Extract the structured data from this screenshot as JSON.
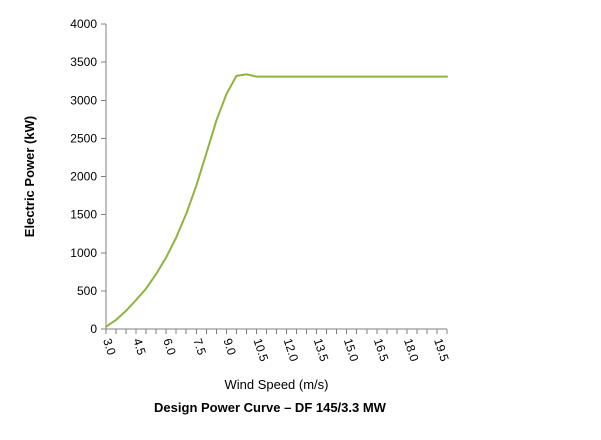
{
  "chart_data": {
    "type": "line",
    "title": "Design Power Curve – DF 145/3.3 MW",
    "xlabel": "Wind Speed (m/s)",
    "ylabel": "Electric Power (kW)",
    "ylim": [
      0,
      4000
    ],
    "yticks": [
      "0",
      "500",
      "1000",
      "1500",
      "2000",
      "2500",
      "3000",
      "3500",
      "4000"
    ],
    "xticks": [
      "3.0",
      "4.5",
      "6.0",
      "7.5",
      "9.0",
      "10.5",
      "12.0",
      "13.5",
      "15.0",
      "16.5",
      "18.0",
      "19.5"
    ],
    "grid": false,
    "x": [
      3.0,
      3.5,
      4.0,
      4.5,
      5.0,
      5.5,
      6.0,
      6.5,
      7.0,
      7.5,
      8.0,
      8.5,
      9.0,
      9.5,
      10.0,
      10.5,
      11.0,
      11.5,
      12.0,
      12.5,
      13.0,
      13.5,
      14.0,
      14.5,
      15.0,
      15.5,
      16.0,
      16.5,
      17.0,
      17.5,
      18.0,
      18.5,
      19.0,
      19.5,
      20.0
    ],
    "series": [
      {
        "color": "#8DB43D",
        "values": [
          30,
          120,
          240,
          380,
          530,
          720,
          940,
          1200,
          1510,
          1880,
          2300,
          2730,
          3080,
          3320,
          3340,
          3310,
          3310,
          3310,
          3310,
          3310,
          3310,
          3310,
          3310,
          3310,
          3310,
          3310,
          3310,
          3310,
          3310,
          3310,
          3310,
          3310,
          3310,
          3310,
          3310
        ]
      }
    ]
  }
}
